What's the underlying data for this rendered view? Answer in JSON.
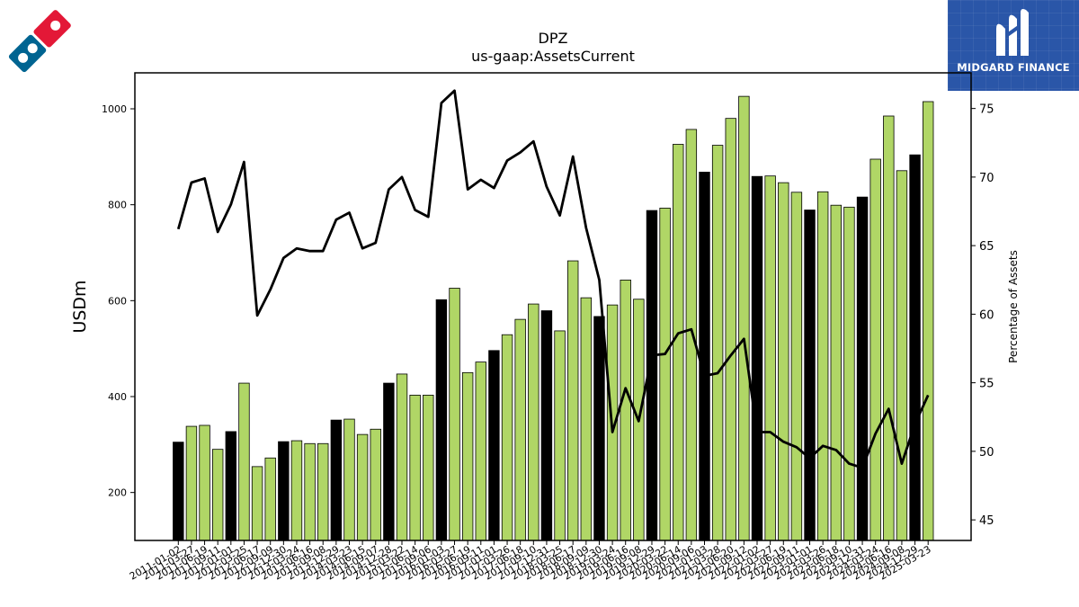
{
  "chart_data": {
    "type": "bar",
    "title": "DPZ",
    "subtitle": "us-gaap:AssetsCurrent",
    "ylabel": "USDm",
    "y2label": "Percentage of Assets",
    "ylim": [
      100,
      1075
    ],
    "y2lim": [
      43.5,
      77.6
    ],
    "yticks": [
      200,
      400,
      600,
      800,
      1000
    ],
    "y2ticks": [
      45,
      50,
      55,
      60,
      65,
      70,
      75
    ],
    "categories": [
      "2011-01-02",
      "2011-03-27",
      "2011-06-19",
      "2011-09-11",
      "2012-01-01",
      "2012-03-25",
      "2012-06-17",
      "2012-09-09",
      "2012-12-30",
      "2013-03-24",
      "2013-06-16",
      "2013-09-08",
      "2013-12-29",
      "2014-03-23",
      "2014-06-15",
      "2014-09-07",
      "2014-12-28",
      "2015-03-22",
      "2015-06-14",
      "2015-09-06",
      "2016-01-03",
      "2016-03-27",
      "2016-06-19",
      "2016-09-11",
      "2017-01-01",
      "2017-03-26",
      "2017-06-18",
      "2017-09-10",
      "2017-12-31",
      "2018-03-25",
      "2018-06-17",
      "2018-09-09",
      "2018-12-30",
      "2019-03-24",
      "2019-06-16",
      "2019-09-08",
      "2019-12-29",
      "2020-03-22",
      "2020-06-14",
      "2020-09-06",
      "2021-01-03",
      "2021-03-28",
      "2021-06-20",
      "2021-09-12",
      "2022-01-02",
      "2022-03-27",
      "2022-06-19",
      "2022-09-11",
      "2023-01-01",
      "2023-03-26",
      "2023-06-18",
      "2023-09-10",
      "2023-12-31",
      "2024-03-24",
      "2024-06-16",
      "2024-09-08",
      "2024-12-29",
      "2025-03-23"
    ],
    "x_tick_labels": [
      "2011-01-02",
      "2011-03-27",
      "2011-06-19",
      "2011-09-11",
      "2012-01-01",
      "2012-03-25",
      "2012-06-17",
      "2012-09-09",
      "2012-12-30",
      "2013-03-24",
      "2013-06-16",
      "2013-09-08",
      "2013-12-29",
      "2014-03-23",
      "2014-06-15",
      "2014-09-07",
      "2014-12-28",
      "2015-03-22",
      "2015-06-14",
      "2015-09-06",
      "2016-01-03",
      "2016-03-27",
      "2016-06-19",
      "2016-09-11",
      "2017-01-01",
      "2017-03-26",
      "2017-06-18",
      "2017-09-10",
      "2017-12-31",
      "2018-03-25",
      "2018-06-17",
      "2018-09-09",
      "2018-12-30",
      "2019-03-24",
      "2019-06-16",
      "2019-09-08",
      "2019-12-29",
      "2020-03-22",
      "2020-06-14",
      "2020-09-06",
      "2021-01-03",
      "2021-03-28",
      "2021-06-20",
      "2021-09-12",
      "2022-01-02",
      "2022-03-27",
      "2022-06-19",
      "2022-09-11",
      "2023-01-01",
      "2023-03-26",
      "2023-06-18",
      "2023-09-10",
      "2023-12-31",
      "2024-03-24",
      "2024-06-16",
      "2024-09-08",
      "2024-12-29",
      "2025-03-23"
    ],
    "values": [
      305,
      338,
      340,
      290,
      327,
      428,
      254,
      272,
      306,
      308,
      302,
      302,
      351,
      353,
      321,
      332,
      428,
      447,
      403,
      403,
      602,
      626,
      450,
      472,
      496,
      529,
      561,
      593,
      579,
      537,
      683,
      606,
      567,
      591,
      643,
      603,
      788,
      793,
      926,
      957,
      868,
      924,
      980,
      1026,
      859,
      860,
      846,
      826,
      789,
      827,
      799,
      795,
      816,
      895,
      985,
      871,
      904,
      1015
    ],
    "bar_colors": [
      "#000000",
      "#b0d666",
      "#b0d666",
      "#b0d666",
      "#000000",
      "#b0d666",
      "#b0d666",
      "#b0d666",
      "#000000",
      "#b0d666",
      "#b0d666",
      "#b0d666",
      "#000000",
      "#b0d666",
      "#b0d666",
      "#b0d666",
      "#000000",
      "#b0d666",
      "#b0d666",
      "#b0d666",
      "#000000",
      "#b0d666",
      "#b0d666",
      "#b0d666",
      "#000000",
      "#b0d666",
      "#b0d666",
      "#b0d666",
      "#000000",
      "#b0d666",
      "#b0d666",
      "#b0d666",
      "#000000",
      "#b0d666",
      "#b0d666",
      "#b0d666",
      "#000000",
      "#b0d666",
      "#b0d666",
      "#b0d666",
      "#000000",
      "#b0d666",
      "#b0d666",
      "#b0d666",
      "#000000",
      "#b0d666",
      "#b0d666",
      "#b0d666",
      "#000000",
      "#b0d666",
      "#b0d666",
      "#b0d666",
      "#000000",
      "#b0d666",
      "#b0d666",
      "#b0d666",
      "#000000",
      "#b0d666"
    ],
    "pct_of_assets": [
      66.2,
      69.6,
      69.9,
      66.0,
      68.0,
      71.1,
      59.9,
      61.8,
      64.1,
      64.8,
      64.6,
      64.6,
      66.9,
      67.4,
      64.8,
      65.2,
      69.1,
      70.0,
      67.6,
      67.1,
      75.4,
      76.3,
      69.1,
      69.8,
      69.2,
      71.2,
      71.8,
      72.6,
      69.3,
      67.2,
      71.5,
      66.3,
      62.5,
      51.4,
      54.6,
      52.2,
      57.0,
      57.1,
      58.6,
      58.9,
      55.5,
      55.7,
      57.0,
      58.2,
      51.4,
      51.4,
      50.7,
      50.3,
      49.5,
      50.4,
      50.1,
      49.1,
      48.8,
      51.3,
      53.1,
      49.1,
      52.0,
      54.1
    ],
    "colors": {
      "bar_annual": "#000000",
      "bar_quarter": "#b0d666",
      "line": "#000000"
    }
  },
  "logos": {
    "right_brand": "MIDGARD FINANCE",
    "left_icon": "dominos-logo-icon",
    "right_icon": "midgard-finance-logo-icon"
  }
}
